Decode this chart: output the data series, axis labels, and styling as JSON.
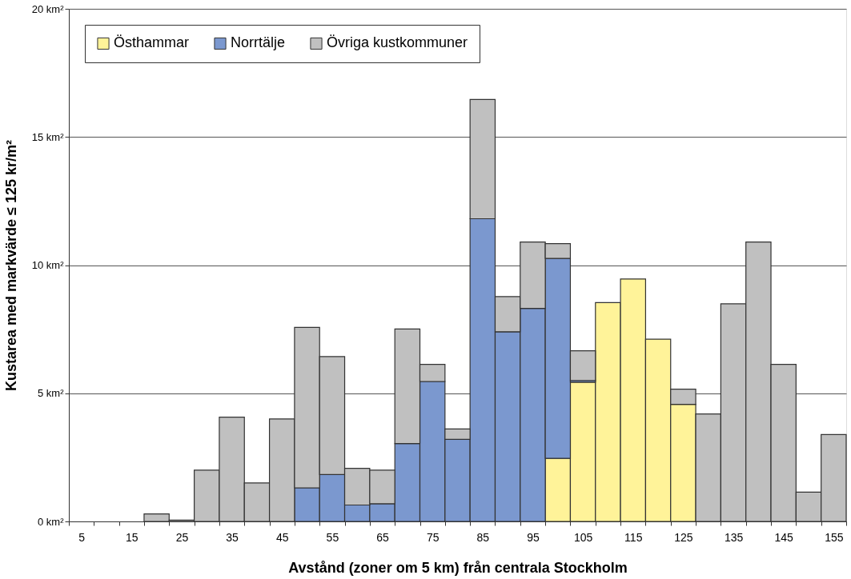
{
  "chart_data": {
    "type": "bar",
    "stacked": true,
    "xlabel": "Avstånd (zoner om 5 km) från centrala Stockholm",
    "ylabel": "Kustarea med markvärde ≤ 125 kr/m²",
    "categories": [
      "5",
      null,
      "15",
      null,
      "25",
      null,
      "35",
      null,
      "45",
      null,
      "55",
      null,
      "65",
      null,
      "75",
      null,
      "85",
      null,
      "95",
      null,
      "105",
      null,
      "115",
      null,
      "125",
      null,
      "135",
      null,
      "145",
      null,
      "155"
    ],
    "series": [
      {
        "name": "Östhammar",
        "color": "#fff399",
        "values": [
          null,
          null,
          null,
          null,
          null,
          null,
          null,
          null,
          null,
          null,
          null,
          null,
          null,
          null,
          null,
          null,
          null,
          null,
          null,
          2.46,
          5.43,
          8.54,
          9.46,
          7.11,
          4.57,
          null,
          null,
          null,
          null,
          null,
          null
        ]
      },
      {
        "name": "Norrtälje",
        "color": "#7b98cf",
        "values": [
          null,
          null,
          null,
          null,
          null,
          null,
          null,
          null,
          null,
          1.31,
          1.83,
          0.64,
          0.69,
          3.04,
          5.46,
          3.2,
          11.81,
          7.4,
          8.31,
          7.8,
          0.07,
          null,
          null,
          null,
          null,
          null,
          null,
          null,
          null,
          null,
          null
        ]
      },
      {
        "name": "Övriga kustkommuner",
        "color": "#c0c0c0",
        "values": [
          null,
          null,
          null,
          0.29,
          0.05,
          2.0,
          4.07,
          1.5,
          4.0,
          6.26,
          4.6,
          1.43,
          1.31,
          4.47,
          0.67,
          0.41,
          4.65,
          1.37,
          2.59,
          0.58,
          1.16,
          null,
          null,
          null,
          0.59,
          4.19,
          8.49,
          10.9,
          6.13,
          1.14,
          3.39
        ]
      }
    ],
    "ylim": [
      0,
      20
    ],
    "yticks": [
      {
        "value": 0,
        "label": "0 km²"
      },
      {
        "value": 5,
        "label": "5 km²"
      },
      {
        "value": 10,
        "label": "10 km²"
      },
      {
        "value": 15,
        "label": "15 km²"
      },
      {
        "value": 20,
        "label": "20 km²"
      }
    ],
    "grid": "y",
    "legend": "top left"
  }
}
